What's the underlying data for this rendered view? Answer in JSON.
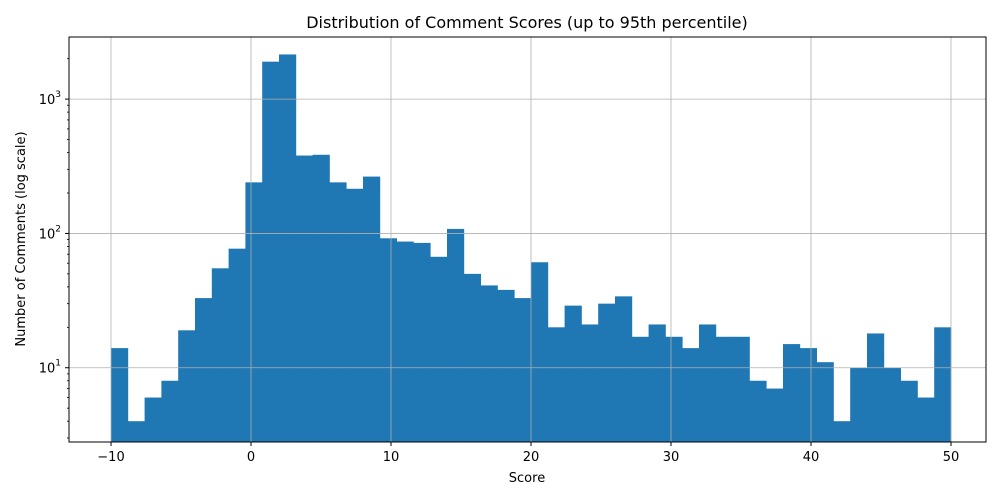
{
  "chart_data": {
    "type": "bar",
    "title": "Distribution of Comment Scores (up to 95th percentile)",
    "xlabel": "Score",
    "ylabel": "Number of Comments (log scale)",
    "yscale": "log",
    "xlim": [
      -13,
      52.5
    ],
    "ylim": [
      2.8,
      2900
    ],
    "grid": true,
    "color": "#1f77b4",
    "bin_start": -10,
    "bin_width": 1.2,
    "values": [
      14,
      4,
      6,
      8,
      19,
      33,
      55,
      77,
      240,
      1900,
      2150,
      380,
      385,
      240,
      215,
      265,
      92,
      87,
      85,
      67,
      108,
      50,
      41,
      38,
      33,
      61,
      20,
      29,
      21,
      30,
      34,
      17,
      21,
      17,
      14,
      21,
      17,
      17,
      8,
      7,
      15,
      14,
      11,
      4,
      10,
      18,
      10,
      8,
      6,
      20
    ],
    "x_ticks": [
      {
        "value": -10,
        "label": "−10"
      },
      {
        "value": 0,
        "label": "0"
      },
      {
        "value": 10,
        "label": "10"
      },
      {
        "value": 20,
        "label": "20"
      },
      {
        "value": 30,
        "label": "30"
      },
      {
        "value": 40,
        "label": "40"
      },
      {
        "value": 50,
        "label": "50"
      }
    ],
    "y_ticks": [
      {
        "value": 10,
        "base": "10",
        "exp": "1"
      },
      {
        "value": 100,
        "base": "10",
        "exp": "2"
      },
      {
        "value": 1000,
        "base": "10",
        "exp": "3"
      }
    ]
  }
}
